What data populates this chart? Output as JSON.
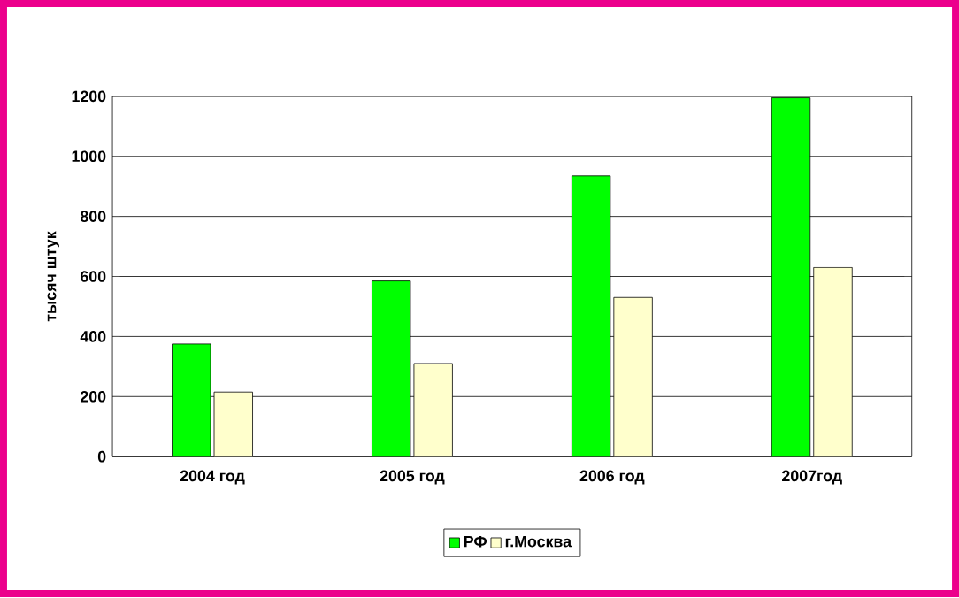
{
  "chart_data": {
    "type": "bar",
    "ylabel": "тысяч штук",
    "categories": [
      "2004 год",
      "2005 год",
      "2006 год",
      "2007год"
    ],
    "series": [
      {
        "name": "РФ",
        "color": "#00ff00",
        "values": [
          375,
          585,
          935,
          1195
        ]
      },
      {
        "name": "г.Москва",
        "color": "#ffffcc",
        "values": [
          215,
          310,
          530,
          630
        ]
      }
    ],
    "ylim": [
      0,
      1200
    ],
    "yticks": [
      0,
      200,
      400,
      600,
      800,
      1000,
      1200
    ],
    "grid": "y",
    "legend": "bottom"
  }
}
